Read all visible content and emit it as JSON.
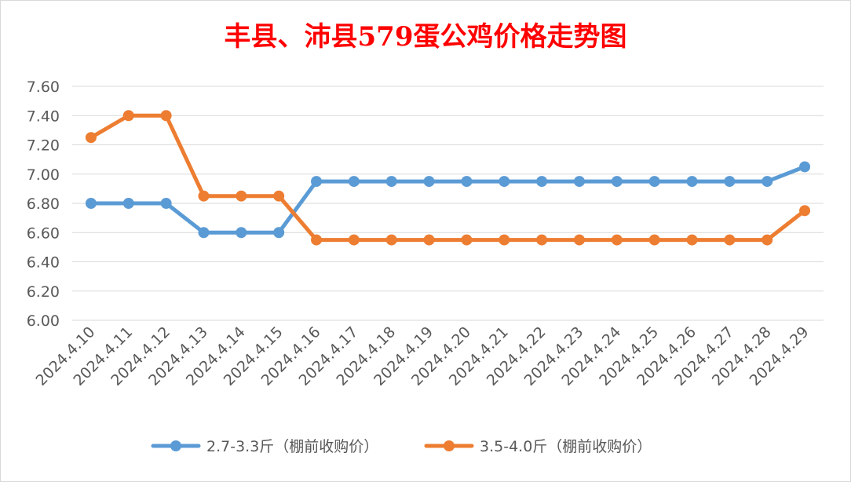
{
  "chart_data": {
    "type": "line",
    "title": "丰县、沛县579蛋公鸡价格走势图",
    "xlabel": "",
    "ylabel": "",
    "ylim": [
      6.0,
      7.6
    ],
    "ytick_labels": [
      "7.60",
      "7.40",
      "7.20",
      "7.00",
      "6.80",
      "6.60",
      "6.40",
      "6.20",
      "6.00"
    ],
    "categories": [
      "2024.4.10",
      "2024.4.11",
      "2024.4.12",
      "2024.4.13",
      "2024.4.14",
      "2024.4.15",
      "2024.4.16",
      "2024.4.17",
      "2024.4.18",
      "2024.4.19",
      "2024.4.20",
      "2024.4.21",
      "2024.4.22",
      "2024.4.23",
      "2024.4.24",
      "2024.4.25",
      "2024.4.26",
      "2024.4.27",
      "2024.4.28",
      "2024.4.29"
    ],
    "grid": true,
    "legend_position": "bottom",
    "series": [
      {
        "name": "2.7-3.3斤（棚前收购价）",
        "color": "#5b9bd5",
        "values": [
          6.8,
          6.8,
          6.8,
          6.6,
          6.6,
          6.6,
          6.95,
          6.95,
          6.95,
          6.95,
          6.95,
          6.95,
          6.95,
          6.95,
          6.95,
          6.95,
          6.95,
          6.95,
          6.95,
          7.05
        ]
      },
      {
        "name": "3.5-4.0斤（棚前收购价）",
        "color": "#ed7d31",
        "values": [
          7.25,
          7.4,
          7.4,
          6.85,
          6.85,
          6.85,
          6.55,
          6.55,
          6.55,
          6.55,
          6.55,
          6.55,
          6.55,
          6.55,
          6.55,
          6.55,
          6.55,
          6.55,
          6.55,
          6.75
        ]
      }
    ]
  }
}
